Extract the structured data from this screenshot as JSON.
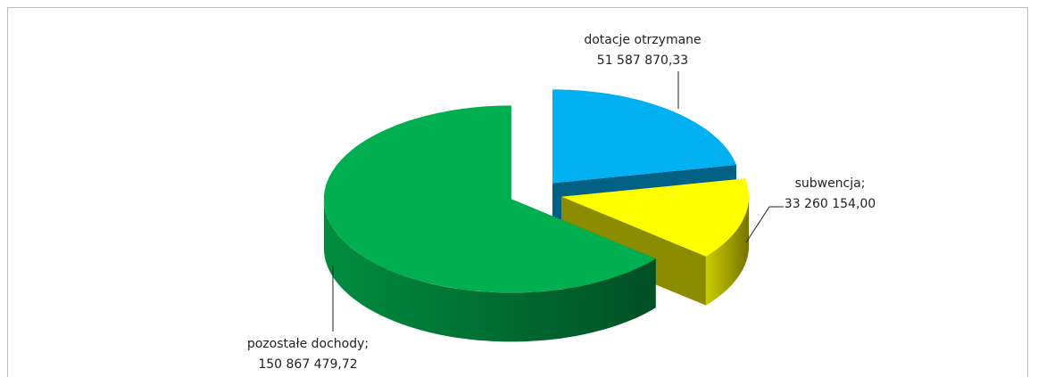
{
  "chart_data": {
    "type": "pie3d",
    "categories": [
      "dotacje otrzymane",
      "subwencja;",
      "pozostałe dochody;"
    ],
    "values": [
      51587870.33,
      33260154.0,
      150867479.72
    ],
    "value_labels": [
      "51 587 870,33",
      "33 260 154,00",
      "150 867 479,72"
    ],
    "colors": [
      "#00b0f0",
      "#ffff00",
      "#00b050"
    ]
  }
}
